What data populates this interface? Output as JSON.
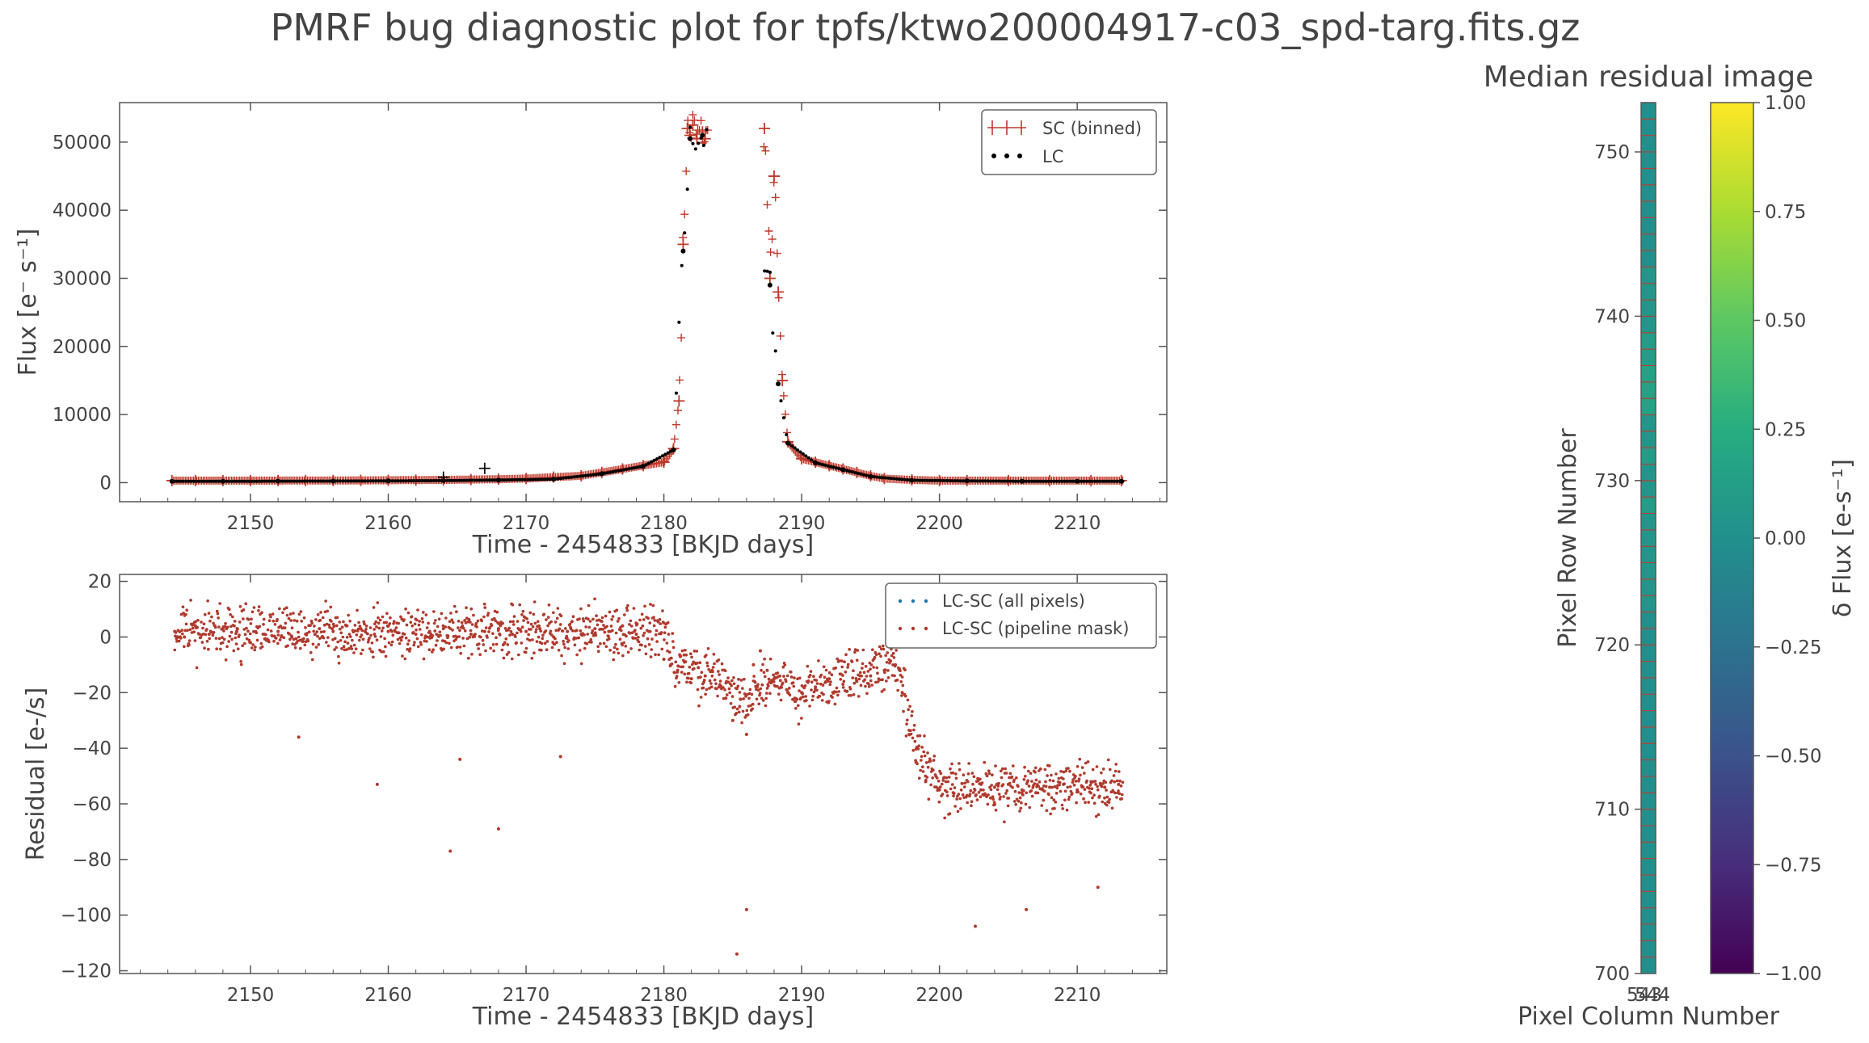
{
  "title": "PMRF bug diagnostic plot for tpfs/ktwo200004917-c03_spd-targ.fits.gz",
  "colors": {
    "sc": "#c0392b",
    "lc": "#000000",
    "residual_all": "#1f77b4",
    "residual_mask": "#b03a2e",
    "text": "#444444",
    "axes": "#555555"
  },
  "chart_data": [
    {
      "type": "line",
      "xlabel": "Time - 2454833 [BKJD days]",
      "ylabel": "Flux [e⁻ s⁻¹]",
      "xlim": [
        2140.5,
        2216.5
      ],
      "ylim": [
        -2800,
        55800
      ],
      "xticks": [
        2150,
        2160,
        2170,
        2180,
        2190,
        2200,
        2210
      ],
      "yticks": [
        0,
        10000,
        20000,
        30000,
        40000,
        50000
      ],
      "legend": {
        "position": "top-right",
        "entries": [
          "SC (binned)",
          "LC"
        ]
      },
      "series": [
        {
          "name": "SC (binned)",
          "marker": "errorbar",
          "x": [
            2144.3,
            2146,
            2148,
            2150,
            2152,
            2154,
            2156,
            2158,
            2160,
            2162,
            2164,
            2166,
            2168,
            2170,
            2172,
            2174,
            2175.5,
            2177,
            2178.5,
            2180,
            2180.7,
            2181.1,
            2181.4,
            2181.7,
            2181.9,
            2182.1,
            2182.4,
            2182.8,
            2183.0,
            2187.3,
            2187.7,
            2188.0,
            2188.3,
            2188.6,
            2189,
            2190,
            2191,
            2192,
            2193,
            2194,
            2195,
            2196,
            2198,
            2200,
            2202,
            2205,
            2208,
            2211,
            2213.2
          ],
          "y": [
            300,
            300,
            300,
            300,
            300,
            310,
            320,
            330,
            350,
            380,
            400,
            450,
            500,
            600,
            800,
            1000,
            1500,
            2000,
            2500,
            3000,
            5000,
            12000,
            35000,
            52000,
            51000,
            52500,
            50500,
            51500,
            50500,
            52000,
            30000,
            45000,
            28000,
            15000,
            6000,
            3500,
            3000,
            2500,
            2000,
            1500,
            1000,
            600,
            400,
            300,
            300,
            300,
            300,
            300,
            300
          ]
        },
        {
          "name": "LC",
          "marker": "dot",
          "x": [
            2144.3,
            2148,
            2152,
            2156,
            2160,
            2164,
            2168,
            2172,
            2175.5,
            2178.5,
            2180.7,
            2181.4,
            2181.9,
            2182.8,
            2187.7,
            2188.3,
            2189,
            2191,
            2193,
            2195,
            2198,
            2202,
            2206,
            2210,
            2213.2
          ],
          "y": [
            200,
            200,
            210,
            230,
            250,
            300,
            380,
            500,
            1300,
            2400,
            4800,
            34000,
            50500,
            51000,
            29000,
            14500,
            5800,
            2900,
            1900,
            900,
            350,
            250,
            200,
            200,
            200
          ]
        }
      ],
      "annotations": [
        {
          "x": 2167,
          "y": 2100
        },
        {
          "x": 2164,
          "y": 800
        }
      ]
    },
    {
      "type": "scatter",
      "xlabel": "Time - 2454833 [BKJD days]",
      "ylabel": "Residual [e-/s]",
      "xlim": [
        2140.5,
        2216.5
      ],
      "ylim": [
        -121,
        22.5
      ],
      "xticks": [
        2150,
        2160,
        2170,
        2180,
        2190,
        2200,
        2210
      ],
      "yticks": [
        -120,
        -100,
        -80,
        -60,
        -40,
        -20,
        0,
        20
      ],
      "legend": {
        "position": "top-right",
        "entries": [
          "LC-SC (all pixels)",
          "LC-SC (pipeline mask)"
        ]
      },
      "series": [
        {
          "name": "LC-SC (all pixels)",
          "x": [],
          "y": []
        },
        {
          "name": "LC-SC (pipeline mask)",
          "x": [
            2144.5,
            2145.2,
            2146,
            2147,
            2148,
            2149,
            2150,
            2151,
            2152,
            2153,
            2154,
            2155,
            2156,
            2157,
            2158,
            2159,
            2160,
            2161,
            2162,
            2163,
            2164,
            2165,
            2166,
            2167,
            2168,
            2169,
            2170,
            2171,
            2172,
            2173,
            2174,
            2175,
            2176,
            2177,
            2178,
            2179,
            2180,
            2180.5,
            2181,
            2181.5,
            2182,
            2182.5,
            2183,
            2183.5,
            2184,
            2184.5,
            2185,
            2185.5,
            2186,
            2186.5,
            2187,
            2187.5,
            2188,
            2188.5,
            2189,
            2189.5,
            2190,
            2191,
            2192,
            2193,
            2194,
            2195,
            2196,
            2196.8,
            2197.3,
            2197.8,
            2198.3,
            2199,
            2200,
            2201,
            2202,
            2203,
            2204,
            2205,
            2206,
            2207,
            2208,
            2209,
            2210,
            2211,
            2212,
            2213,
            2153.5,
            2159.2,
            2164.5,
            2168,
            2165.2,
            2172.5,
            2185.3,
            2186,
            2202.6,
            2206.3,
            2211.5
          ],
          "y": [
            2,
            0,
            4,
            1,
            3,
            2,
            -2,
            1,
            2,
            0,
            1,
            3,
            2,
            4,
            3,
            1,
            2,
            0,
            1,
            2,
            3,
            0,
            1,
            2,
            3,
            1,
            2,
            3,
            0,
            2,
            1,
            3,
            2,
            4,
            1,
            2,
            -8,
            -10,
            -12,
            -9,
            -15,
            -11,
            -14,
            -12,
            -18,
            -22,
            -30,
            -25,
            -35,
            -10,
            -5,
            -12,
            -15,
            -18,
            -20,
            -22,
            -20,
            -18,
            -15,
            -17,
            -16,
            -14,
            -12,
            -10,
            -20,
            -35,
            -45,
            -52,
            -55,
            -56,
            -57,
            -55,
            -54,
            -53,
            -55,
            -56,
            -54,
            -53,
            -55,
            -52,
            -54,
            -53,
            -36,
            -53,
            -77,
            -69,
            -44,
            -43,
            -114,
            -98,
            -104,
            -98,
            -90
          ]
        }
      ]
    },
    {
      "type": "heatmap",
      "title": "Median residual image",
      "xlabel": "Pixel Column Number",
      "ylabel": "Pixel Row Number",
      "xtick_labels": [
        "543",
        "544"
      ],
      "yticks": [
        700,
        710,
        720,
        730,
        740,
        750
      ],
      "ylim": [
        700,
        753
      ],
      "rows": [
        700,
        701,
        702,
        703,
        704,
        705,
        706,
        707,
        708,
        709,
        710,
        711,
        712,
        713,
        714,
        715,
        716,
        717,
        718,
        719,
        720,
        721,
        722,
        723,
        724,
        725,
        726,
        727,
        728,
        729,
        730,
        731,
        732,
        733,
        734,
        735,
        736,
        737,
        738,
        739,
        740,
        741,
        742,
        743,
        744,
        745,
        746,
        747,
        748,
        749,
        750,
        751,
        752
      ],
      "values": [
        0,
        0,
        0,
        0,
        0,
        0,
        0,
        0,
        0,
        0,
        0,
        0,
        0,
        0,
        0,
        0,
        0,
        0,
        0,
        0,
        0,
        0,
        0.05,
        0.05,
        0.05,
        0.05,
        0.05,
        0.05,
        0.1,
        0.05,
        0.05,
        0.1,
        0.05,
        0.05,
        0.15,
        0.15,
        0.15,
        0.1,
        0.1,
        0.05,
        0.05,
        0.05,
        0.05,
        0,
        0,
        0,
        0,
        0,
        0,
        0,
        0,
        0,
        0
      ],
      "colorbar": {
        "label": "δ Flux [e-s⁻¹]",
        "range": [
          -1.0,
          1.0
        ],
        "ticks": [
          "−1.00",
          "−0.75",
          "−0.50",
          "−0.25",
          "0.00",
          "0.25",
          "0.50",
          "0.75",
          "1.00"
        ],
        "colormap": "viridis"
      }
    }
  ]
}
